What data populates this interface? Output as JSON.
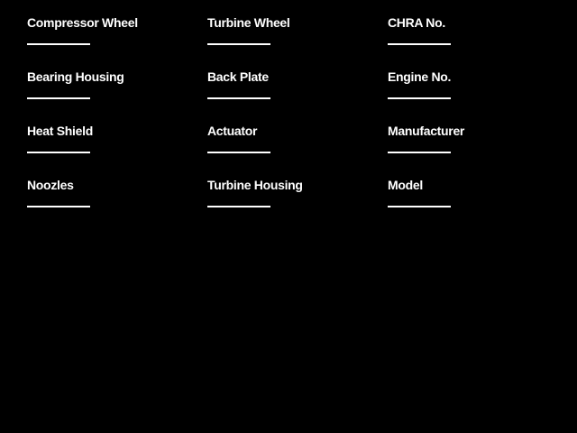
{
  "screen": {
    "background": "#000000",
    "text_color": "#ffffff",
    "line_color": "#ffffff"
  },
  "form": {
    "columns": [
      {
        "name": "parts-left",
        "fields": [
          {
            "label": "Compressor Wheel",
            "value": ""
          },
          {
            "label": "Bearing Housing",
            "value": ""
          },
          {
            "label": "Heat Shield",
            "value": ""
          },
          {
            "label": "Noozles",
            "value": ""
          }
        ]
      },
      {
        "name": "parts-middle",
        "fields": [
          {
            "label": "Turbine Wheel",
            "value": ""
          },
          {
            "label": "Back Plate",
            "value": ""
          },
          {
            "label": "Actuator",
            "value": ""
          },
          {
            "label": "Turbine Housing",
            "value": ""
          }
        ]
      },
      {
        "name": "identification",
        "fields": [
          {
            "label": "CHRA No.",
            "value": ""
          },
          {
            "label": "Engine No.",
            "value": ""
          },
          {
            "label": "Manufacturer",
            "value": ""
          },
          {
            "label": "Model",
            "value": ""
          }
        ]
      }
    ]
  }
}
